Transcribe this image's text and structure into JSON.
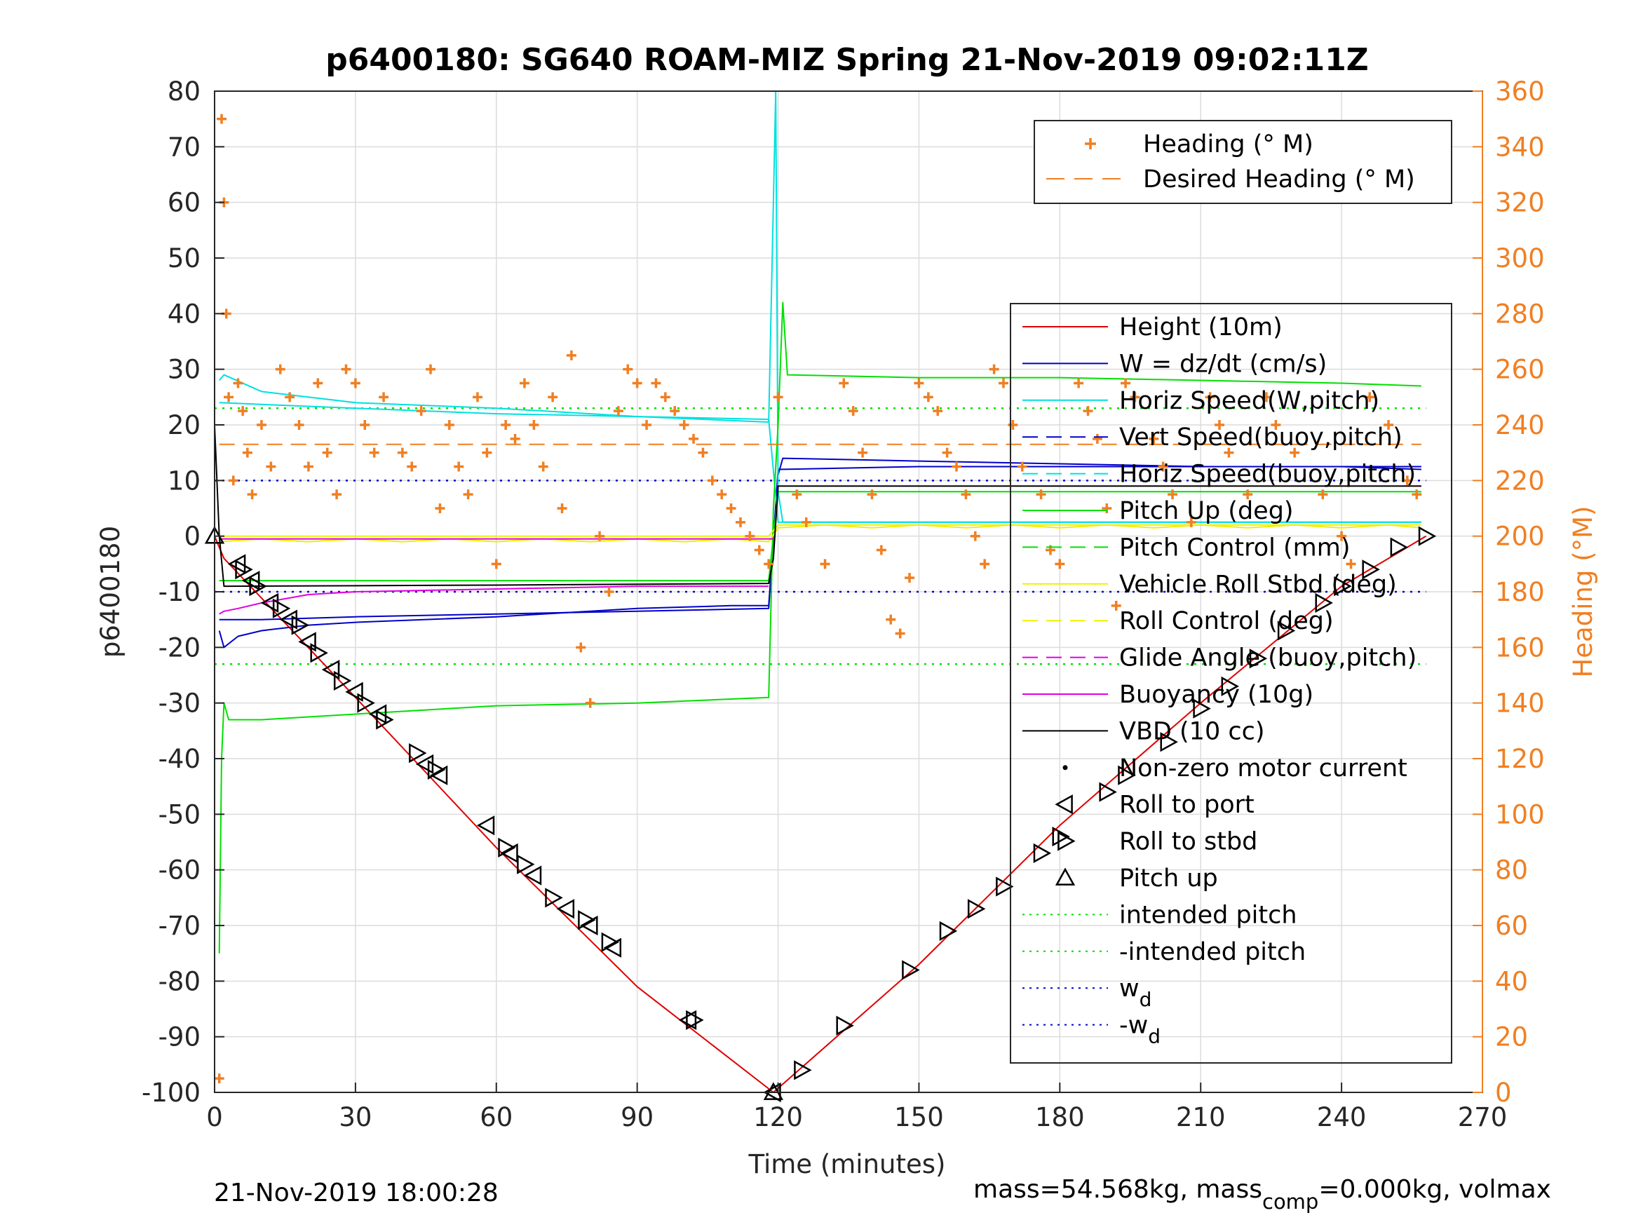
{
  "chart_data": {
    "type": "line",
    "title": "p6400180: SG640 ROAM-MIZ Spring 21-Nov-2019 09:02:11Z",
    "xlabel": "Time (minutes)",
    "ylabel": "p6400180",
    "ylabel_right": "Heading (°M)",
    "xlim": [
      0,
      270
    ],
    "ylim": [
      -100,
      80
    ],
    "ylim_right": [
      0,
      360
    ],
    "xticks": [
      0,
      30,
      60,
      90,
      120,
      150,
      180,
      210,
      240,
      270
    ],
    "yticks": [
      -100,
      -90,
      -80,
      -70,
      -60,
      -50,
      -40,
      -30,
      -20,
      -10,
      0,
      10,
      20,
      30,
      40,
      50,
      60,
      70,
      80
    ],
    "yticks_right": [
      0,
      20,
      40,
      60,
      80,
      100,
      120,
      140,
      160,
      180,
      200,
      220,
      240,
      260,
      280,
      300,
      320,
      340,
      360
    ],
    "grid": true,
    "footer_left": "21-Nov-2019 18:00:28",
    "footer_right": {
      "pre": "mass=54.568kg, mass",
      "sub": "comp",
      "post": "=0.000kg, volmax"
    },
    "legend_top": [
      {
        "label": "Heading (° M)",
        "color": "#f07f22",
        "style": "plus"
      },
      {
        "label": "Desired Heading (° M)",
        "color": "#f07f22",
        "style": "dashed"
      }
    ],
    "legend_main": [
      {
        "label": "Height (10m)",
        "color": "#e00000",
        "style": "solid"
      },
      {
        "label": "W = dz/dt (cm/s)",
        "color": "#0000c8",
        "style": "solid"
      },
      {
        "label": "Horiz Speed(W,pitch)",
        "color": "#00e0e0",
        "style": "solid"
      },
      {
        "label": "Vert Speed(buoy,pitch)",
        "color": "#0000c8",
        "style": "dashed"
      },
      {
        "label": "Horiz Speed(buoy,pitch)",
        "color": "#00e0e0",
        "style": "dashed"
      },
      {
        "label": "Pitch Up (deg)",
        "color": "#00e000",
        "style": "solid"
      },
      {
        "label": "Pitch Control (mm)",
        "color": "#00e000",
        "style": "dashed"
      },
      {
        "label": "Vehicle Roll Stbd (deg)",
        "color": "#f0f000",
        "style": "solid"
      },
      {
        "label": "Roll Control (deg)",
        "color": "#f0f000",
        "style": "dashed"
      },
      {
        "label": "Glide Angle (buoy,pitch)",
        "color": "#e000e0",
        "style": "dashed"
      },
      {
        "label": "Buoyancy (10g)",
        "color": "#e000e0",
        "style": "solid"
      },
      {
        "label": "VBD (10 cc)",
        "color": "#000000",
        "style": "solid"
      },
      {
        "label": "Non-zero motor current",
        "color": "#000000",
        "style": "dot"
      },
      {
        "label": "Roll to port",
        "color": "#000000",
        "style": "tri-left"
      },
      {
        "label": "Roll to stbd",
        "color": "#000000",
        "style": "tri-right"
      },
      {
        "label": "Pitch up",
        "color": "#000000",
        "style": "tri-up"
      },
      {
        "label": "intended pitch",
        "color": "#00e000",
        "style": "dotted"
      },
      {
        "label": "-intended pitch",
        "color": "#00e000",
        "style": "dotted"
      },
      {
        "label": "w",
        "sub": "d",
        "color": "#0000c8",
        "style": "dotted"
      },
      {
        "label": "-w",
        "sub": "d",
        "color": "#0000c8",
        "style": "dotted"
      }
    ],
    "reference_lines": [
      {
        "name": "intended pitch",
        "y": 23,
        "color": "#00e000"
      },
      {
        "name": "-intended pitch",
        "y": -23,
        "color": "#00e000"
      },
      {
        "name": "w_d",
        "y": 10,
        "color": "#0000c8"
      },
      {
        "name": "-w_d",
        "y": -10,
        "color": "#0000c8"
      }
    ],
    "series": [
      {
        "name": "Height (10m)",
        "color": "#e00000",
        "axis": "left",
        "x": [
          0,
          2,
          30,
          60,
          90,
          119,
          150,
          180,
          210,
          240,
          258
        ],
        "y": [
          0,
          -4,
          -29,
          -56,
          -81,
          -100,
          -77,
          -52,
          -30,
          -9,
          0
        ]
      },
      {
        "name": "W = dz/dt (cm/s)",
        "color": "#0000c8",
        "axis": "left",
        "x": [
          1,
          2,
          5,
          10,
          20,
          30,
          60,
          90,
          110,
          118,
          120,
          121,
          150,
          180,
          210,
          240,
          257
        ],
        "y": [
          -17,
          -20,
          -18,
          -17,
          -16,
          -15.5,
          -14.5,
          -13,
          -12.5,
          -12.5,
          11,
          14,
          13.5,
          13,
          12.5,
          12.5,
          12
        ]
      },
      {
        "name": "Vert Speed(buoy,pitch)",
        "color": "#0000c8",
        "axis": "left",
        "x": [
          1,
          10,
          30,
          60,
          90,
          118,
          120,
          150,
          180,
          210,
          240,
          257
        ],
        "y": [
          -15,
          -15,
          -14.5,
          -14,
          -13.5,
          -13,
          12,
          12.5,
          12.5,
          12.5,
          12.5,
          12.5
        ]
      },
      {
        "name": "Horiz Speed(W,pitch)",
        "color": "#00e0e0",
        "axis": "left",
        "x": [
          1,
          2,
          10,
          30,
          60,
          90,
          118,
          119,
          119.5,
          120,
          121,
          150,
          180,
          210,
          240,
          257
        ],
        "y": [
          28,
          29,
          26,
          24,
          23,
          21.5,
          20.5,
          60,
          80,
          8,
          2.5,
          2.5,
          2.5,
          2.5,
          2.5,
          2.5
        ]
      },
      {
        "name": "Horiz Speed(buoy,pitch)",
        "color": "#00e0e0",
        "axis": "left",
        "x": [
          1,
          30,
          60,
          90,
          118,
          120,
          257
        ],
        "y": [
          24,
          23,
          22,
          21.5,
          21,
          2.5,
          2.5
        ]
      },
      {
        "name": "Pitch Up (deg)",
        "color": "#00e000",
        "axis": "left",
        "x": [
          1,
          1.5,
          2,
          3,
          10,
          30,
          60,
          90,
          118,
          119,
          120,
          121,
          122,
          150,
          180,
          210,
          240,
          257
        ],
        "y": [
          -75,
          -40,
          -30,
          -33,
          -33,
          -32,
          -30.5,
          -30,
          -29,
          5,
          20,
          42,
          29,
          28.5,
          28.5,
          28,
          27.5,
          27
        ]
      },
      {
        "name": "Pitch Control (mm)",
        "color": "#00e000",
        "axis": "left",
        "x": [
          1,
          118,
          120,
          257
        ],
        "y": [
          -8,
          -8,
          8,
          8
        ]
      },
      {
        "name": "Vehicle Roll Stbd (deg)",
        "color": "#f0f000",
        "axis": "left",
        "x": [
          1,
          10,
          20,
          30,
          40,
          50,
          60,
          70,
          80,
          90,
          100,
          110,
          118,
          120,
          130,
          140,
          150,
          160,
          170,
          180,
          190,
          200,
          210,
          220,
          230,
          240,
          250,
          257
        ],
        "y": [
          -1,
          -0.5,
          -1,
          -0.5,
          -1,
          -0.5,
          -1,
          -0.5,
          -1,
          -0.5,
          -1,
          -0.5,
          -1,
          1.5,
          2,
          1.5,
          2,
          1.5,
          2,
          1.5,
          2,
          1.5,
          2,
          1.5,
          2,
          1.5,
          2,
          1.5
        ]
      },
      {
        "name": "Roll Control (deg)",
        "color": "#f0f000",
        "axis": "left",
        "x": [
          1,
          118,
          120,
          257
        ],
        "y": [
          0,
          0,
          2,
          2
        ]
      },
      {
        "name": "Glide Angle (buoy,pitch)",
        "color": "#e000e0",
        "axis": "left",
        "x": [
          1,
          118,
          119
        ],
        "y": [
          -0.5,
          -0.5,
          -0.5
        ]
      },
      {
        "name": "Buoyancy (10g)",
        "color": "#e000e0",
        "axis": "left",
        "x": [
          1,
          2,
          5,
          10,
          20,
          30,
          60,
          90,
          118
        ],
        "y": [
          -14,
          -13.5,
          -13,
          -12,
          -10.5,
          -10,
          -9.5,
          -9,
          -9
        ]
      },
      {
        "name": "VBD (10 cc)",
        "color": "#000000",
        "axis": "left",
        "x": [
          0,
          1,
          2,
          60,
          118,
          119,
          120,
          150,
          180,
          210,
          240,
          257
        ],
        "y": [
          20,
          0,
          -9,
          -8.8,
          -8.5,
          -4,
          9,
          9,
          9,
          9,
          9,
          9
        ]
      },
      {
        "name": "Heading (° M)",
        "color": "#f07f22",
        "axis": "right",
        "style": "markers",
        "x": [
          1,
          1.5,
          2,
          2.5,
          3,
          4,
          5,
          6,
          7,
          8,
          10,
          12,
          14,
          16,
          18,
          20,
          22,
          24,
          26,
          28,
          30,
          32,
          34,
          36,
          40,
          42,
          44,
          46,
          48,
          50,
          52,
          54,
          56,
          58,
          60,
          62,
          64,
          66,
          68,
          70,
          72,
          74,
          76,
          78,
          80,
          82,
          84,
          86,
          88,
          90,
          92,
          94,
          96,
          98,
          100,
          102,
          104,
          106,
          108,
          110,
          112,
          114,
          116,
          118,
          120,
          124,
          126,
          130,
          134,
          136,
          138,
          140,
          142,
          144,
          146,
          148,
          150,
          152,
          154,
          156,
          158,
          160,
          162,
          164,
          166,
          168,
          170,
          172,
          176,
          178,
          180,
          184,
          186,
          188,
          190,
          192,
          194,
          196,
          200,
          202,
          204,
          208,
          212,
          214,
          216,
          220,
          224,
          226,
          230,
          236,
          240,
          242,
          246,
          250,
          254,
          256
        ],
        "y": [
          5,
          350,
          320,
          280,
          250,
          220,
          255,
          245,
          230,
          215,
          240,
          225,
          260,
          250,
          240,
          225,
          255,
          230,
          215,
          260,
          255,
          240,
          230,
          250,
          230,
          225,
          245,
          260,
          210,
          240,
          225,
          215,
          250,
          230,
          190,
          240,
          235,
          255,
          240,
          225,
          250,
          210,
          265,
          160,
          140,
          200,
          180,
          245,
          260,
          255,
          240,
          255,
          250,
          245,
          240,
          235,
          230,
          220,
          215,
          210,
          205,
          200,
          195,
          190,
          250,
          215,
          205,
          190,
          255,
          245,
          230,
          215,
          195,
          170,
          165,
          185,
          255,
          250,
          245,
          230,
          225,
          215,
          200,
          190,
          260,
          255,
          240,
          225,
          215,
          195,
          190,
          255,
          245,
          235,
          210,
          175,
          255,
          250,
          235,
          225,
          215,
          205,
          250,
          240,
          230,
          215,
          250,
          240,
          230,
          215,
          200,
          190,
          250,
          240,
          220,
          215
        ]
      },
      {
        "name": "Desired Heading (° M)",
        "color": "#f07f22",
        "axis": "right",
        "style": "dashed",
        "x": [
          1,
          257
        ],
        "y": [
          233,
          233
        ]
      }
    ],
    "markers": [
      {
        "name": "Pitch up",
        "x": [
          0,
          119
        ],
        "y": [
          0,
          -100
        ]
      },
      {
        "name": "Roll to port",
        "x": [
          5,
          8,
          12,
          16,
          20,
          25,
          30,
          35,
          45,
          48,
          58,
          63,
          68,
          75,
          80,
          85,
          101,
          119
        ],
        "y": [
          -5,
          -8,
          -12,
          -15,
          -19,
          -24,
          -28,
          -32,
          -41,
          -43,
          -52,
          -57,
          -61,
          -67,
          -70,
          -74,
          -87,
          -100
        ]
      },
      {
        "name": "Roll to stbd",
        "x": [
          6,
          9,
          14,
          18,
          22,
          27,
          32,
          36,
          43,
          47,
          62,
          66,
          72,
          79,
          84,
          102,
          125,
          134,
          148,
          156,
          162,
          168,
          176,
          180,
          190,
          194,
          203,
          210,
          216,
          222,
          228,
          236,
          240,
          246,
          252,
          258
        ],
        "y": [
          -6,
          -9,
          -13,
          -16,
          -21,
          -26,
          -30,
          -33,
          -39,
          -42,
          -56,
          -59,
          -65,
          -69,
          -73,
          -87,
          -96,
          -88,
          -78,
          -71,
          -67,
          -63,
          -57,
          -54,
          -46,
          -43,
          -37,
          -31,
          -27,
          -22,
          -17,
          -12,
          -9,
          -6,
          -2,
          0
        ]
      }
    ]
  }
}
